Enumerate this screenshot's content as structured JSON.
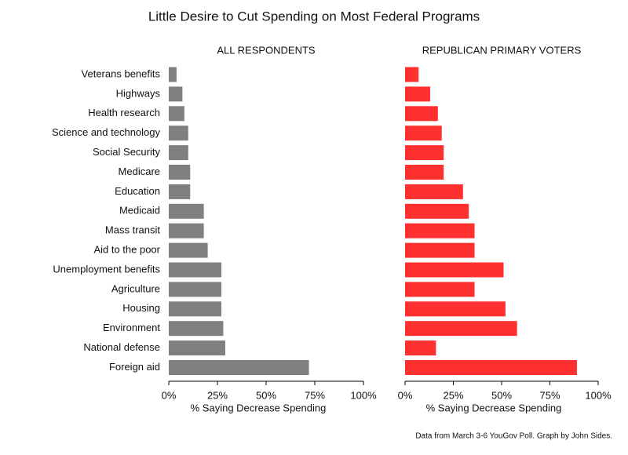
{
  "title": "Little Desire to Cut Spending on Most Federal Programs",
  "note": "Data from March 3-6 YouGov Poll.  Graph by John Sides.",
  "chart_data": [
    {
      "type": "bar",
      "orientation": "horizontal",
      "title": "ALL RESPONDENTS",
      "color": "#808080",
      "categories": [
        "Veterans benefits",
        "Highways",
        "Health research",
        "Science and technology",
        "Social Security",
        "Medicare",
        "Education",
        "Medicaid",
        "Mass transit",
        "Aid to the poor",
        "Unemployment benefits",
        "Agriculture",
        "Housing",
        "Environment",
        "National defense",
        "Foreign aid"
      ],
      "values": [
        4,
        7,
        8,
        10,
        10,
        11,
        11,
        18,
        18,
        20,
        27,
        27,
        27,
        28,
        29,
        72
      ],
      "xlabel": "% Saying Decrease Spending",
      "xlim": [
        0,
        100
      ],
      "xticks": [
        {
          "value": 0,
          "label": "0%"
        },
        {
          "value": 25,
          "label": "25%"
        },
        {
          "value": 50,
          "label": "50%"
        },
        {
          "value": 75,
          "label": "75%"
        },
        {
          "value": 100,
          "label": "100%"
        }
      ]
    },
    {
      "type": "bar",
      "orientation": "horizontal",
      "title": "REPUBLICAN PRIMARY VOTERS",
      "color": "#ff3030",
      "values": [
        7,
        13,
        17,
        19,
        20,
        20,
        30,
        33,
        36,
        36,
        51,
        36,
        52,
        58,
        16,
        89
      ],
      "xlabel": "% Saying Decrease Spending",
      "xlim": [
        0,
        100
      ],
      "xticks": [
        {
          "value": 0,
          "label": "0%"
        },
        {
          "value": 25,
          "label": "25%"
        },
        {
          "value": 50,
          "label": "50%"
        },
        {
          "value": 75,
          "label": "75%"
        },
        {
          "value": 100,
          "label": "100%"
        }
      ]
    }
  ]
}
